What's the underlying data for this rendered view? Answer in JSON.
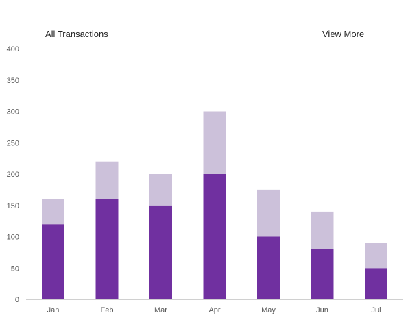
{
  "header": {
    "title": "All Transactions",
    "view_more": "View More"
  },
  "chart_data": {
    "type": "bar",
    "stacked": true,
    "categories": [
      "Jan",
      "Feb",
      "Mar",
      "Apr",
      "May",
      "Jun",
      "Jul"
    ],
    "series": [
      {
        "values": [
          120,
          160,
          150,
          200,
          100,
          80,
          50
        ],
        "color": "#7030a0"
      },
      {
        "values": [
          40,
          60,
          50,
          100,
          75,
          60,
          40
        ],
        "color": "#ccc1da"
      }
    ],
    "totals": [
      160,
      220,
      200,
      300,
      175,
      140,
      90
    ],
    "ylim": [
      0,
      400
    ],
    "yticks": [
      0,
      50,
      100,
      150,
      200,
      250,
      300,
      350,
      400
    ],
    "grid": false,
    "legend": "none",
    "xlabel": "",
    "ylabel": ""
  }
}
